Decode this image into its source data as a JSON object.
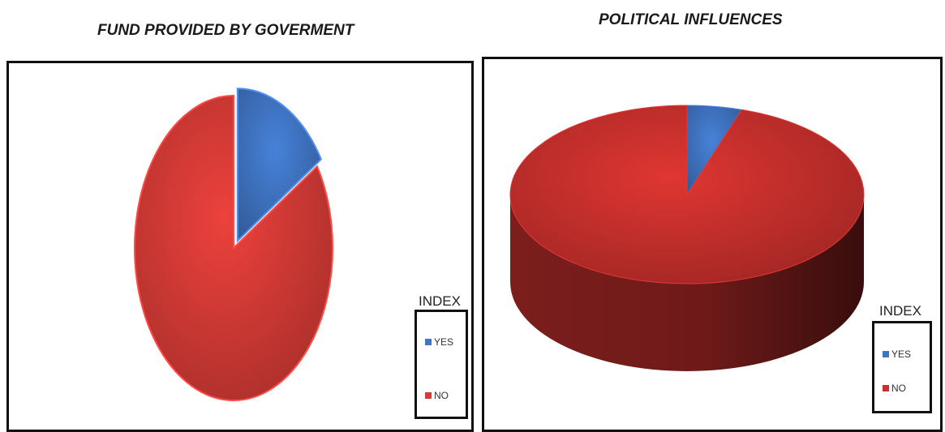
{
  "chart_data": [
    {
      "type": "pie",
      "title": "FUND PROVIDED BY GOVERMENT",
      "legend_title": "INDEX",
      "legend_position": "bottom-right",
      "exploded_slice": "YES",
      "categories": [
        "YES",
        "NO"
      ],
      "values": [
        16,
        84
      ],
      "colors": [
        "#3f74c2",
        "#d43a36"
      ]
    },
    {
      "type": "pie",
      "style": "3d",
      "title": "POLITICAL INFLUENCES",
      "legend_title": "INDEX",
      "legend_position": "bottom-right",
      "categories": [
        "YES",
        "NO"
      ],
      "values": [
        5,
        95
      ],
      "colors": [
        "#3f74c2",
        "#c8302d"
      ]
    }
  ]
}
